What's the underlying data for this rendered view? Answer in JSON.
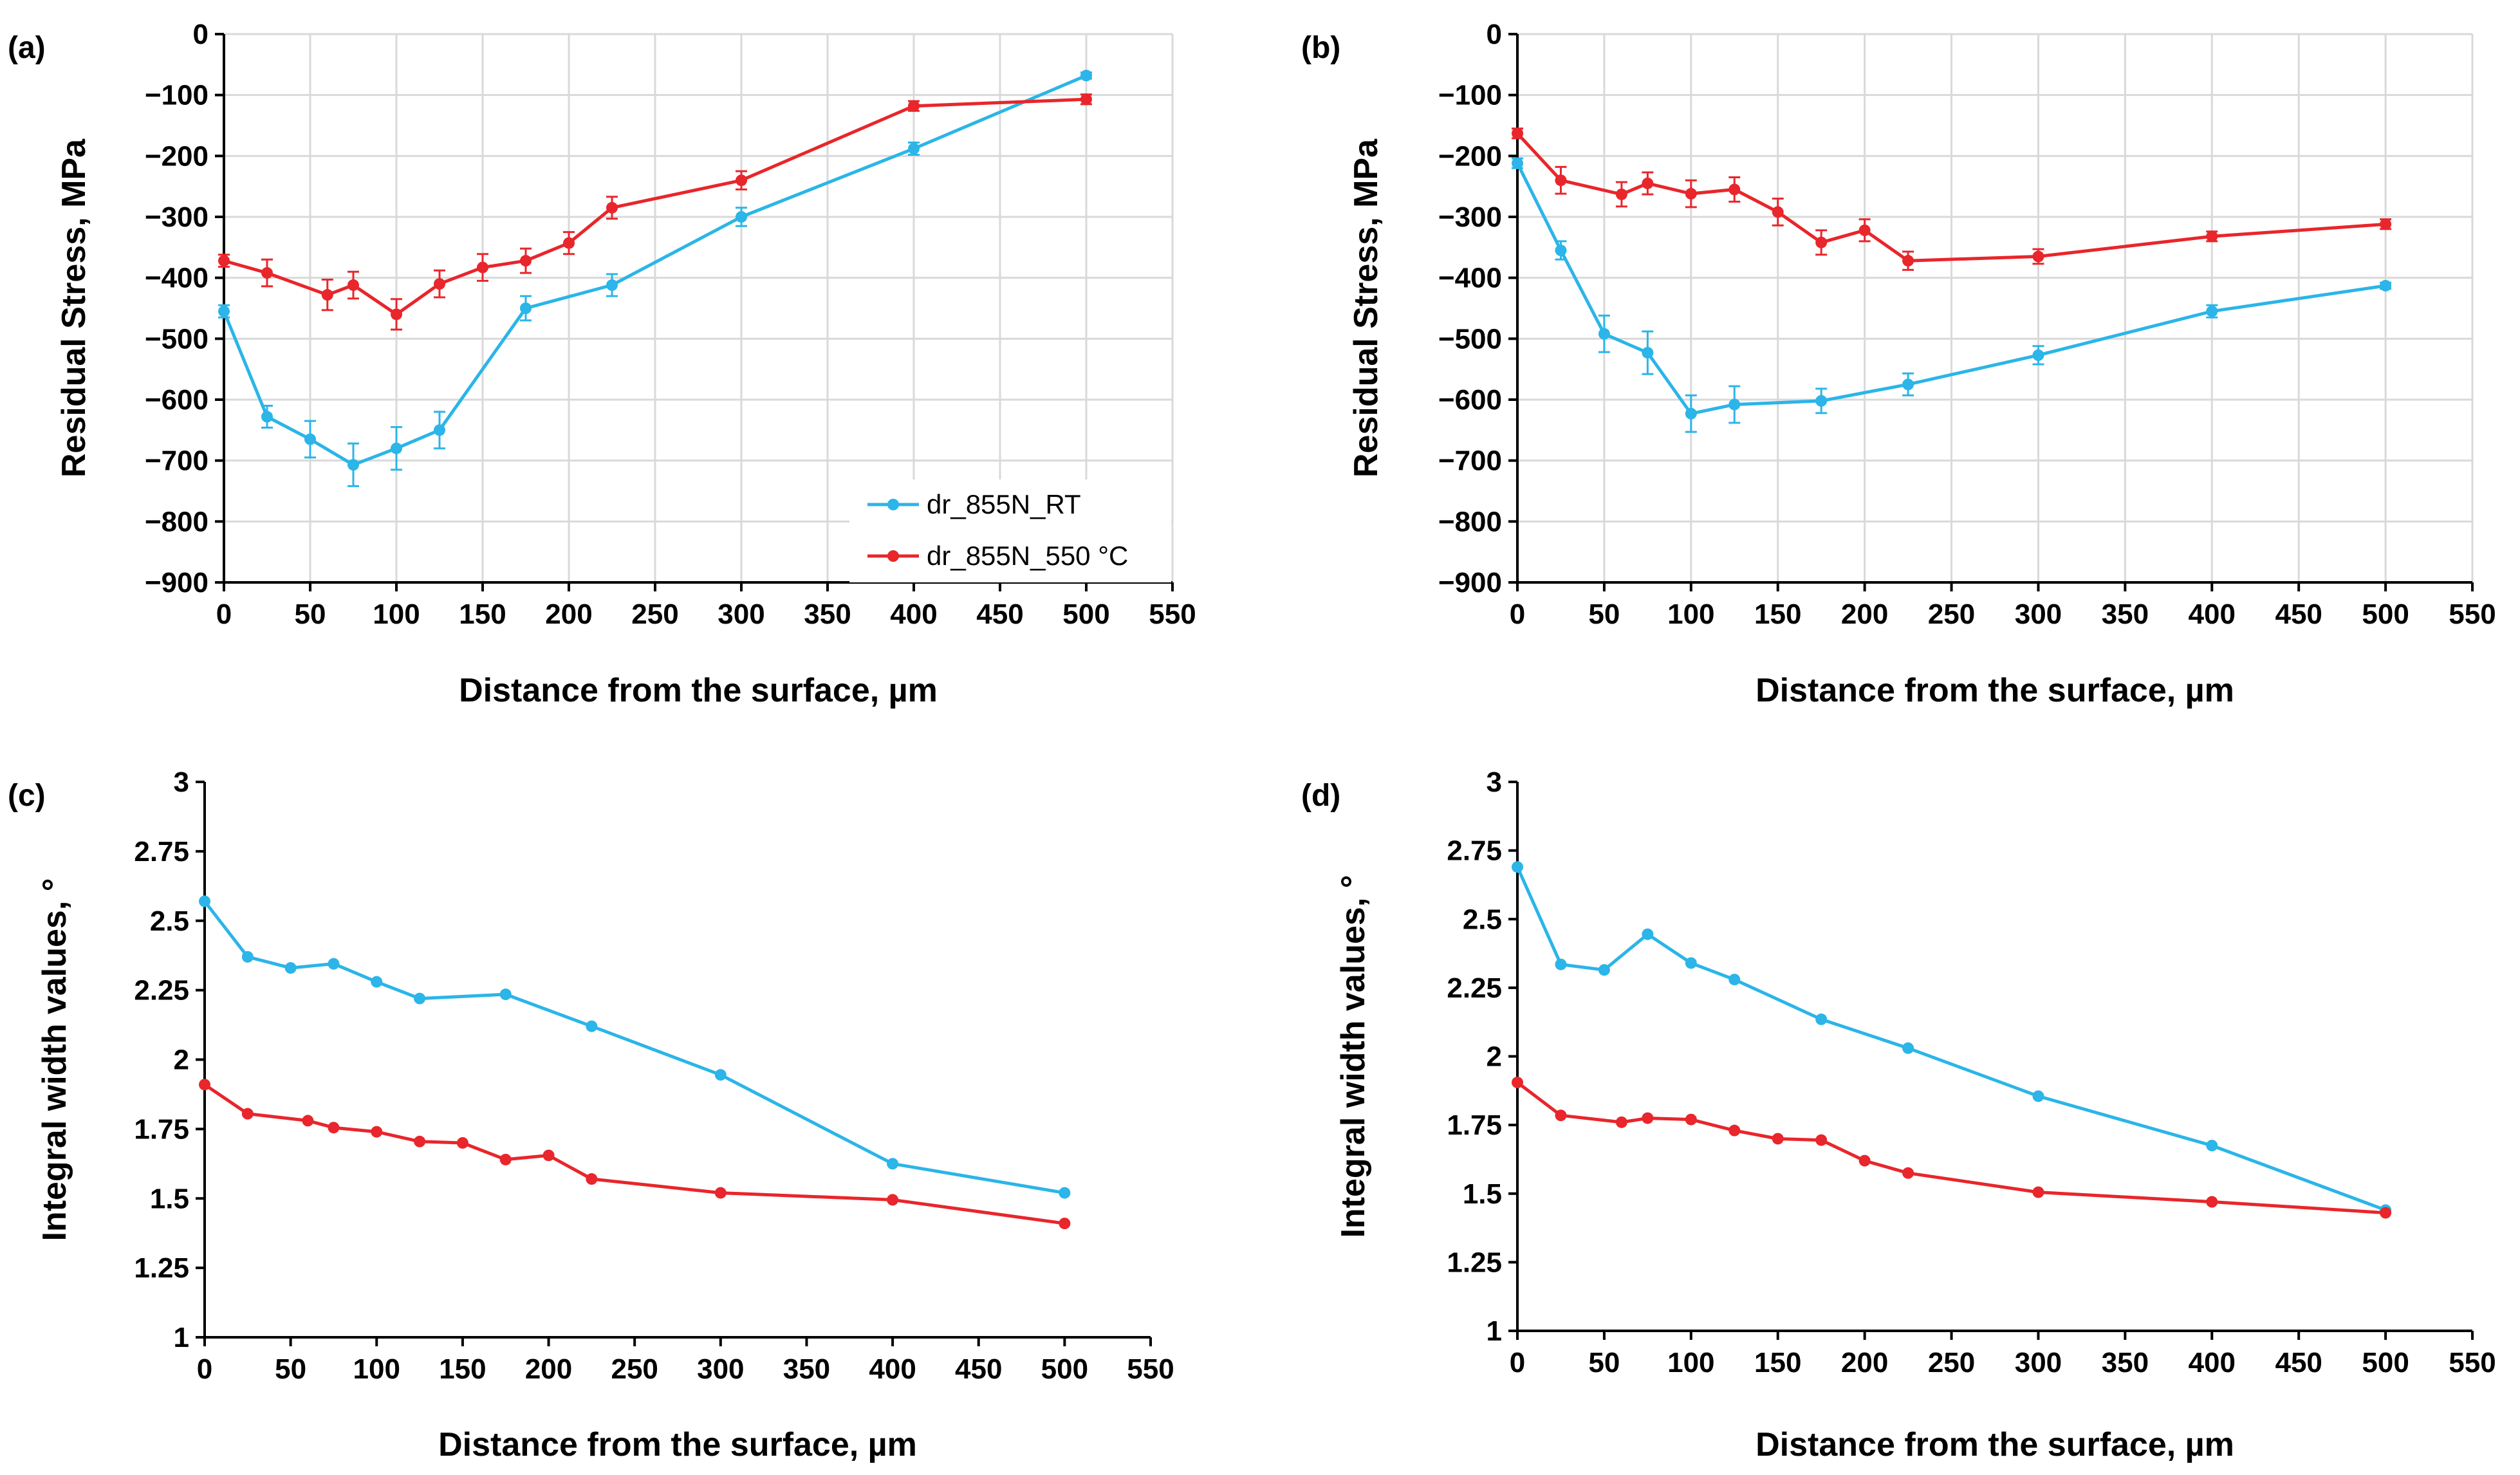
{
  "colors": {
    "rt": "#2bb5e8",
    "hot": "#e8262b",
    "grid": "#d9d9d9",
    "axis": "#000000"
  },
  "chart_data": [
    {
      "id": "a",
      "type": "line",
      "panel_label": "(a)",
      "xlabel": "Distance from the surface, µm",
      "ylabel": "Residual Stress, MPa",
      "xlim": [
        0,
        550
      ],
      "ylim": [
        -900,
        0
      ],
      "xticks": [
        0,
        50,
        100,
        150,
        200,
        250,
        300,
        350,
        400,
        450,
        500,
        550
      ],
      "yticks": [
        0,
        -100,
        -200,
        -300,
        -400,
        -500,
        -600,
        -700,
        -800,
        -900
      ],
      "ytick_labels": [
        "0",
        "−100",
        "−200",
        "−300",
        "−400",
        "−500",
        "−600",
        "−700",
        "−800",
        "−900"
      ],
      "grid": true,
      "legend": "bottom-right",
      "series": [
        {
          "name": "dr_855N_RT",
          "color_key": "rt",
          "x": [
            0,
            25,
            50,
            75,
            100,
            125,
            175,
            225,
            300,
            400,
            500
          ],
          "y": [
            -455,
            -628,
            -665,
            -707,
            -680,
            -650,
            -450,
            -412,
            -300,
            -188,
            -68
          ],
          "err": [
            10,
            18,
            30,
            35,
            35,
            30,
            20,
            18,
            15,
            10,
            5
          ]
        },
        {
          "name": "dr_855N_550 °C",
          "color_key": "hot",
          "x": [
            0,
            25,
            60,
            75,
            100,
            125,
            150,
            175,
            200,
            225,
            300,
            400,
            500
          ],
          "y": [
            -372,
            -392,
            -428,
            -412,
            -460,
            -410,
            -383,
            -372,
            -343,
            -285,
            -240,
            -118,
            -107
          ],
          "err": [
            10,
            22,
            25,
            22,
            25,
            22,
            22,
            20,
            18,
            18,
            15,
            8,
            8
          ]
        }
      ]
    },
    {
      "id": "b",
      "type": "line",
      "panel_label": "(b)",
      "xlabel": "Distance from the surface, µm",
      "ylabel": "Residual Stress, MPa",
      "xlim": [
        0,
        550
      ],
      "ylim": [
        -900,
        0
      ],
      "xticks": [
        0,
        50,
        100,
        150,
        200,
        250,
        300,
        350,
        400,
        450,
        500,
        550
      ],
      "yticks": [
        0,
        -100,
        -200,
        -300,
        -400,
        -500,
        -600,
        -700,
        -800,
        -900
      ],
      "ytick_labels": [
        "0",
        "−100",
        "−200",
        "−300",
        "−400",
        "−500",
        "−600",
        "−700",
        "−800",
        "−900"
      ],
      "grid": true,
      "series": [
        {
          "name": "dr_855N_RT",
          "color_key": "rt",
          "x": [
            0,
            25,
            50,
            75,
            100,
            125,
            175,
            225,
            300,
            400,
            500
          ],
          "y": [
            -212,
            -355,
            -492,
            -523,
            -623,
            -608,
            -602,
            -575,
            -527,
            -455,
            -413
          ],
          "err": [
            8,
            15,
            30,
            35,
            30,
            30,
            20,
            18,
            15,
            10,
            5
          ]
        },
        {
          "name": "dr_855N_550 °C",
          "color_key": "hot",
          "x": [
            0,
            25,
            60,
            75,
            100,
            125,
            150,
            175,
            200,
            225,
            300,
            400,
            500
          ],
          "y": [
            -163,
            -240,
            -263,
            -245,
            -262,
            -255,
            -292,
            -342,
            -322,
            -372,
            -365,
            -332,
            -312
          ],
          "err": [
            8,
            22,
            20,
            18,
            22,
            20,
            22,
            20,
            18,
            15,
            12,
            8,
            8
          ]
        }
      ]
    },
    {
      "id": "c",
      "type": "line",
      "panel_label": "(c)",
      "xlabel": "Distance from the surface, µm",
      "ylabel": "Integral width values, °",
      "xlim": [
        0,
        550
      ],
      "ylim": [
        1,
        3
      ],
      "xticks": [
        0,
        50,
        100,
        150,
        200,
        250,
        300,
        350,
        400,
        450,
        500,
        550
      ],
      "yticks": [
        3,
        2.75,
        2.5,
        2.25,
        2,
        1.75,
        1.5,
        1.25,
        1
      ],
      "ytick_labels": [
        "3",
        "2.75",
        "2.5",
        "2.25",
        "2",
        "1.75",
        "1.5",
        "1.25",
        "1"
      ],
      "grid": false,
      "series": [
        {
          "name": "dr_855N_RT",
          "color_key": "rt",
          "x": [
            0,
            25,
            50,
            75,
            100,
            125,
            175,
            225,
            300,
            400,
            500
          ],
          "y": [
            2.57,
            2.37,
            2.33,
            2.345,
            2.28,
            2.22,
            2.235,
            2.12,
            1.945,
            1.625,
            1.52
          ]
        },
        {
          "name": "dr_855N_550 °C",
          "color_key": "hot",
          "x": [
            0,
            25,
            60,
            75,
            100,
            125,
            150,
            175,
            200,
            225,
            300,
            400,
            500
          ],
          "y": [
            1.91,
            1.805,
            1.78,
            1.755,
            1.74,
            1.705,
            1.7,
            1.64,
            1.655,
            1.57,
            1.52,
            1.495,
            1.41
          ]
        }
      ]
    },
    {
      "id": "d",
      "type": "line",
      "panel_label": "(d)",
      "xlabel": "Distance from the surface, µm",
      "ylabel": "Integral width values, °",
      "xlim": [
        0,
        550
      ],
      "ylim": [
        1,
        3
      ],
      "xticks": [
        0,
        50,
        100,
        150,
        200,
        250,
        300,
        350,
        400,
        450,
        500,
        550
      ],
      "yticks": [
        3,
        2.75,
        2.5,
        2.25,
        2,
        1.75,
        1.5,
        1.25,
        1
      ],
      "ytick_labels": [
        "3",
        "2.75",
        "2.5",
        "2.25",
        "2",
        "1.75",
        "1.5",
        "1.25",
        "1"
      ],
      "grid": false,
      "series": [
        {
          "name": "dr_855N_RT",
          "color_key": "rt",
          "x": [
            0,
            25,
            50,
            75,
            100,
            125,
            175,
            225,
            300,
            400,
            500
          ],
          "y": [
            2.69,
            2.335,
            2.315,
            2.445,
            2.34,
            2.28,
            2.135,
            2.03,
            1.855,
            1.675,
            1.44
          ]
        },
        {
          "name": "dr_855N_550 °C",
          "color_key": "hot",
          "x": [
            0,
            25,
            60,
            75,
            100,
            125,
            150,
            175,
            200,
            225,
            300,
            400,
            500
          ],
          "y": [
            1.905,
            1.785,
            1.76,
            1.775,
            1.77,
            1.73,
            1.7,
            1.695,
            1.62,
            1.575,
            1.505,
            1.47,
            1.43
          ]
        }
      ]
    }
  ]
}
